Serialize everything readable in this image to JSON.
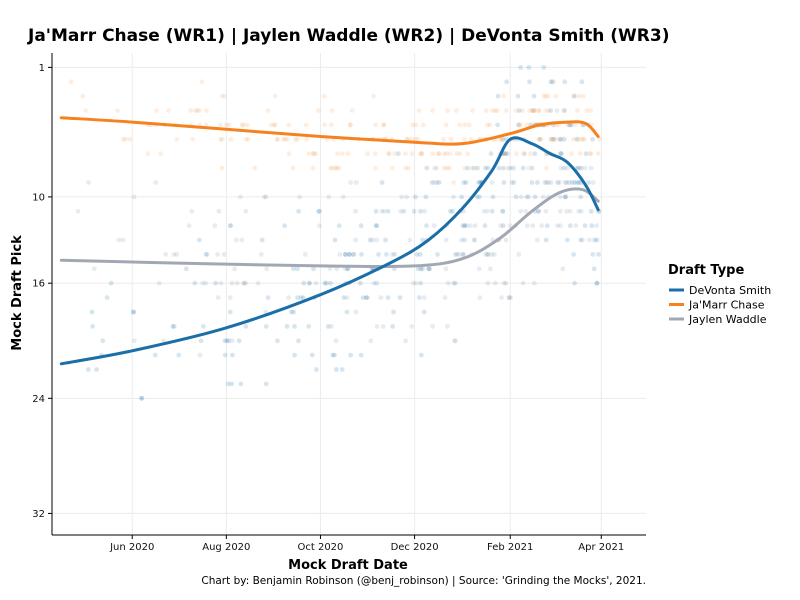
{
  "chart_data": {
    "type": "scatter",
    "title": "Ja'Marr Chase (WR1) | Jaylen Waddle (WR2) | DeVonta Smith (WR3)",
    "xlabel": "Mock Draft Date",
    "ylabel": "Mock Draft Pick",
    "caption": "Chart by: Benjamin Robinson (@benj_robinson) | Source: 'Grinding the Mocks', 2021.",
    "x_range": [
      "2020-04-10",
      "2021-04-30"
    ],
    "x_ticks": [
      {
        "date": "2020-06-01",
        "label": "Jun 2020"
      },
      {
        "date": "2020-08-01",
        "label": "Aug 2020"
      },
      {
        "date": "2020-10-01",
        "label": "Oct 2020"
      },
      {
        "date": "2020-12-01",
        "label": "Dec 2020"
      },
      {
        "date": "2021-02-01",
        "label": "Feb 2021"
      },
      {
        "date": "2021-04-01",
        "label": "Apr 2021"
      }
    ],
    "y_range": [
      33.5,
      0
    ],
    "y_reversed": true,
    "y_ticks": [
      1,
      10,
      16,
      24,
      32
    ],
    "grid": true,
    "legend": {
      "title": "Draft Type",
      "position": "right",
      "entries": [
        {
          "name": "DeVonta Smith",
          "color": "#1a6fa8"
        },
        {
          "name": "Ja'Marr Chase",
          "color": "#f5821f"
        },
        {
          "name": "Jaylen Waddle",
          "color": "#a2a8b3"
        }
      ]
    },
    "series": [
      {
        "name": "DeVonta Smith",
        "color": "#1a6fa8",
        "points_color": "#1a6fa8",
        "smooth": [
          [
            "2020-04-16",
            21.6
          ],
          [
            "2020-06-01",
            20.7
          ],
          [
            "2020-08-01",
            19.1
          ],
          [
            "2020-10-01",
            16.8
          ],
          [
            "2020-11-15",
            14.6
          ],
          [
            "2020-12-10",
            13.0
          ],
          [
            "2021-01-01",
            10.8
          ],
          [
            "2021-01-20",
            8.2
          ],
          [
            "2021-02-01",
            6.0
          ],
          [
            "2021-02-15",
            6.3
          ],
          [
            "2021-02-27",
            7.0
          ],
          [
            "2021-03-10",
            7.6
          ],
          [
            "2021-03-22",
            9.2
          ],
          [
            "2021-03-30",
            10.9
          ]
        ]
      },
      {
        "name": "Ja'Marr Chase",
        "color": "#f5821f",
        "points_color": "#f5a15a",
        "smooth": [
          [
            "2020-04-16",
            4.5
          ],
          [
            "2020-06-01",
            4.8
          ],
          [
            "2020-08-01",
            5.3
          ],
          [
            "2020-10-01",
            5.8
          ],
          [
            "2020-12-01",
            6.2
          ],
          [
            "2021-01-01",
            6.3
          ],
          [
            "2021-02-01",
            5.6
          ],
          [
            "2021-02-20",
            5.0
          ],
          [
            "2021-03-10",
            4.8
          ],
          [
            "2021-03-22",
            4.9
          ],
          [
            "2021-03-30",
            5.8
          ]
        ]
      },
      {
        "name": "Jaylen Waddle",
        "color": "#a2a8b3",
        "points_color": "#7f8fa6",
        "smooth": [
          [
            "2020-04-16",
            14.4
          ],
          [
            "2020-07-01",
            14.6
          ],
          [
            "2020-10-01",
            14.8
          ],
          [
            "2020-12-01",
            14.8
          ],
          [
            "2021-01-01",
            14.3
          ],
          [
            "2021-01-25",
            12.9
          ],
          [
            "2021-02-15",
            11.0
          ],
          [
            "2021-03-05",
            9.7
          ],
          [
            "2021-03-20",
            9.5
          ],
          [
            "2021-03-30",
            10.3
          ]
        ]
      }
    ]
  }
}
